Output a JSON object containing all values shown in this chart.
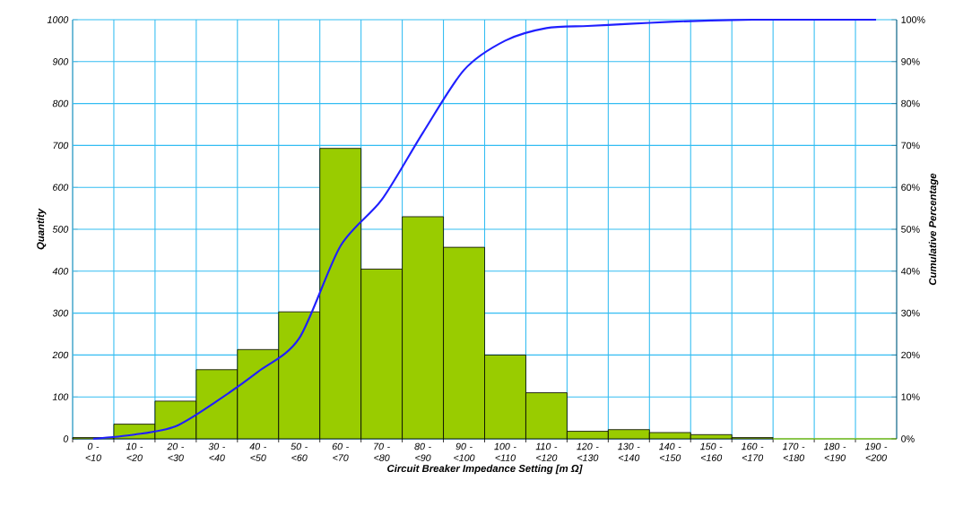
{
  "chart_data": {
    "type": "bar",
    "xlabel": "Circuit Breaker Impedance Setting [m Ω]",
    "ylabel": "Quantity",
    "y2label": "Cumulative Percentage",
    "categories": [
      "0 - <10",
      "10 - <20",
      "20 - <30",
      "30 - <40",
      "40 - <50",
      "50 - <60",
      "60 - <70",
      "70 - <80",
      "80 - <90",
      "90 - <100",
      "100 - <110",
      "110 - <120",
      "120 - <130",
      "130 - <140",
      "140 - <150",
      "150 - <160",
      "160 - <170",
      "170 - <180",
      "180 - <190",
      "190 - <200"
    ],
    "series": [
      {
        "color": "#99cc00",
        "values": [
          3,
          35,
          90,
          165,
          213,
          303,
          693,
          405,
          530,
          457,
          200,
          110,
          18,
          22,
          15,
          10,
          3,
          0,
          0,
          0
        ]
      },
      {
        "type": "line",
        "axis": "y2",
        "color": "#2020ff",
        "values": [
          0,
          1,
          3,
          9,
          16,
          24,
          46,
          57,
          73,
          88,
          95,
          98,
          98.5,
          99,
          99.5,
          99.8,
          100,
          100,
          100,
          100
        ]
      }
    ],
    "ylim": [
      0,
      1000
    ],
    "yticks": [
      0,
      100,
      200,
      300,
      400,
      500,
      600,
      700,
      800,
      900,
      1000
    ],
    "y2lim": [
      0,
      100
    ],
    "y2ticks": [
      {
        "value": 0,
        "label": "0%"
      },
      {
        "value": 10,
        "label": "10%"
      },
      {
        "value": 20,
        "label": "20%"
      },
      {
        "value": 30,
        "label": "30%"
      },
      {
        "value": 40,
        "label": "40%"
      },
      {
        "value": 50,
        "label": "50%"
      },
      {
        "value": 60,
        "label": "60%"
      },
      {
        "value": 70,
        "label": "70%"
      },
      {
        "value": 80,
        "label": "80%"
      },
      {
        "value": 90,
        "label": "90%"
      },
      {
        "value": 100,
        "label": "100%"
      }
    ],
    "grid": true,
    "legend": false,
    "marker": "none"
  }
}
